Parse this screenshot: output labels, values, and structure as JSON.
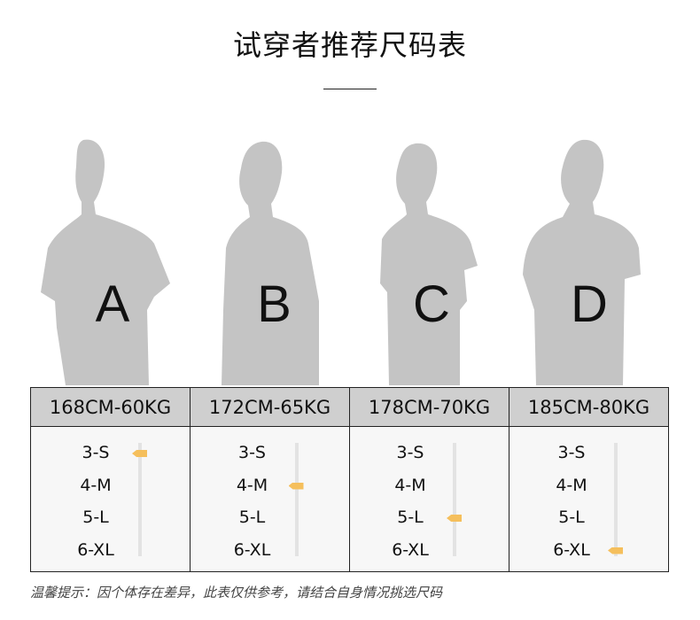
{
  "title": "试穿者推荐尺码表",
  "models": [
    {
      "letter": "A",
      "spec": "168CM-60KG",
      "recommended": "3-S"
    },
    {
      "letter": "B",
      "spec": "172CM-65KG",
      "recommended": "4-M"
    },
    {
      "letter": "C",
      "spec": "178CM-70KG",
      "recommended": "5-L"
    },
    {
      "letter": "D",
      "spec": "185CM-80KG",
      "recommended": "6-XL"
    }
  ],
  "sizes": [
    "3-S",
    "4-M",
    "5-L",
    "6-XL"
  ],
  "colors": {
    "marker": "#f5bf5c",
    "silhouette": "#c4c4c4",
    "header": "#cfcfcf"
  },
  "note": "温馨提示：因个体存在差异，此表仅供参考，请结合自身情况挑选尺码"
}
